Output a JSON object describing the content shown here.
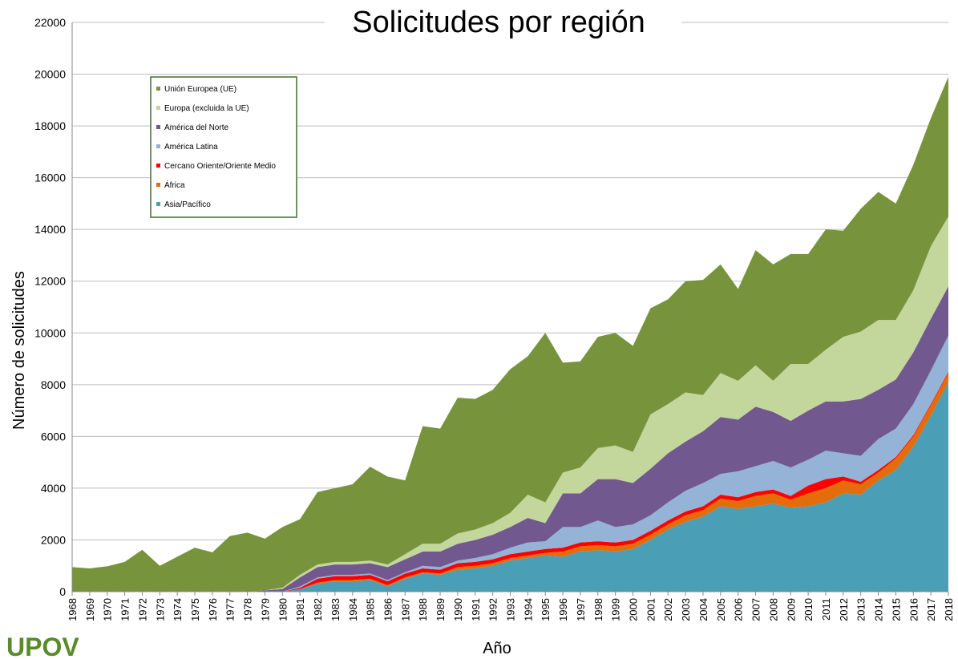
{
  "chart_data": {
    "type": "stacked_area",
    "title": "Solicitudes por región",
    "x_label": "Año",
    "y_label": "Número de solicitudes",
    "x": [
      1968,
      1969,
      1970,
      1971,
      1972,
      1973,
      1974,
      1975,
      1976,
      1977,
      1978,
      1979,
      1980,
      1981,
      1982,
      1983,
      1984,
      1985,
      1986,
      1987,
      1988,
      1989,
      1990,
      1991,
      1992,
      1993,
      1994,
      1995,
      1996,
      1997,
      1998,
      1999,
      2000,
      2001,
      2002,
      2003,
      2004,
      2005,
      2006,
      2007,
      2008,
      2009,
      2010,
      2011,
      2012,
      2013,
      2014,
      2015,
      2016,
      2017,
      2018
    ],
    "xlim": [
      1968,
      2018
    ],
    "ylim": [
      0,
      22000
    ],
    "yticks": [
      0,
      2000,
      4000,
      6000,
      8000,
      10000,
      12000,
      14000,
      16000,
      18000,
      20000,
      22000
    ],
    "grid": true,
    "legend": "upper left",
    "series": [
      {
        "name": "Unión Europea (UE)",
        "color": "#77933c",
        "values": [
          950,
          900,
          980,
          1150,
          1620,
          1000,
          1350,
          1700,
          1520,
          2150,
          2280,
          2000,
          2350,
          2150,
          2800,
          2850,
          3000,
          3630,
          3400,
          2850,
          4550,
          4450,
          5250,
          5050,
          5150,
          5550,
          5350,
          6550,
          4250,
          4100,
          4300,
          4350,
          4100,
          4100,
          4050,
          4300,
          4450,
          4200,
          3550,
          4450,
          4500,
          4250,
          4250,
          4650,
          4100,
          4750,
          4950,
          4500,
          4850,
          4950,
          5400
        ]
      },
      {
        "name": "Europa (excluida la UE)",
        "color": "#c3d69b",
        "values": [
          0,
          0,
          0,
          0,
          0,
          0,
          0,
          0,
          0,
          0,
          0,
          0,
          50,
          100,
          100,
          100,
          100,
          100,
          100,
          200,
          300,
          300,
          400,
          400,
          450,
          550,
          900,
          800,
          800,
          1000,
          1200,
          1300,
          1200,
          2100,
          1900,
          1900,
          1400,
          1700,
          1500,
          1600,
          1200,
          2200,
          1800,
          2000,
          2500,
          2600,
          2700,
          2300,
          2400,
          2800,
          2700
        ]
      },
      {
        "name": "América del Norte",
        "color": "#71588f",
        "values": [
          0,
          0,
          0,
          0,
          0,
          0,
          0,
          0,
          0,
          0,
          0,
          50,
          100,
          350,
          400,
          400,
          400,
          400,
          500,
          500,
          550,
          600,
          650,
          700,
          750,
          800,
          950,
          700,
          1300,
          1300,
          1600,
          1850,
          1600,
          1800,
          1900,
          1900,
          2000,
          2200,
          2000,
          2300,
          1900,
          1800,
          1900,
          1900,
          2000,
          2200,
          1900,
          1900,
          2000,
          2000,
          1900
        ]
      },
      {
        "name": "América Latina",
        "color": "#95b3d7",
        "values": [
          0,
          0,
          0,
          0,
          0,
          0,
          0,
          0,
          0,
          0,
          0,
          0,
          0,
          50,
          50,
          50,
          50,
          50,
          50,
          50,
          100,
          100,
          100,
          150,
          200,
          250,
          350,
          300,
          800,
          600,
          800,
          600,
          600,
          600,
          700,
          800,
          900,
          800,
          1000,
          1000,
          1100,
          1100,
          1000,
          1100,
          900,
          1000,
          1200,
          1100,
          1200,
          1300,
          1400
        ]
      },
      {
        "name": "Cercano Oriente/Oriente Medio",
        "color": "#ff0000",
        "values": [
          0,
          0,
          0,
          0,
          0,
          0,
          0,
          0,
          0,
          0,
          0,
          0,
          0,
          50,
          150,
          150,
          150,
          150,
          150,
          150,
          150,
          150,
          150,
          150,
          150,
          150,
          150,
          150,
          150,
          150,
          150,
          150,
          150,
          150,
          150,
          150,
          150,
          150,
          150,
          150,
          150,
          150,
          300,
          350,
          150,
          100,
          100,
          50,
          50,
          50,
          50
        ]
      },
      {
        "name": "África",
        "color": "#e46c0a",
        "values": [
          0,
          0,
          0,
          0,
          0,
          0,
          0,
          0,
          0,
          0,
          0,
          0,
          0,
          0,
          50,
          50,
          50,
          50,
          50,
          50,
          50,
          50,
          100,
          100,
          100,
          100,
          100,
          100,
          200,
          200,
          200,
          200,
          200,
          200,
          200,
          250,
          250,
          300,
          300,
          400,
          400,
          300,
          500,
          550,
          500,
          400,
          300,
          450,
          400,
          400,
          350
        ]
      },
      {
        "name": "Asia/Pacífico",
        "color": "#4a9eb5",
        "values": [
          0,
          0,
          0,
          0,
          0,
          0,
          0,
          0,
          0,
          0,
          0,
          0,
          0,
          100,
          300,
          400,
          400,
          450,
          200,
          500,
          700,
          650,
          850,
          900,
          1000,
          1200,
          1300,
          1400,
          1350,
          1550,
          1600,
          1550,
          1650,
          2000,
          2400,
          2700,
          2900,
          3300,
          3200,
          3300,
          3400,
          3250,
          3300,
          3450,
          3800,
          3750,
          4300,
          4700,
          5600,
          6800,
          8100
        ]
      }
    ]
  },
  "logo": "UPOV"
}
